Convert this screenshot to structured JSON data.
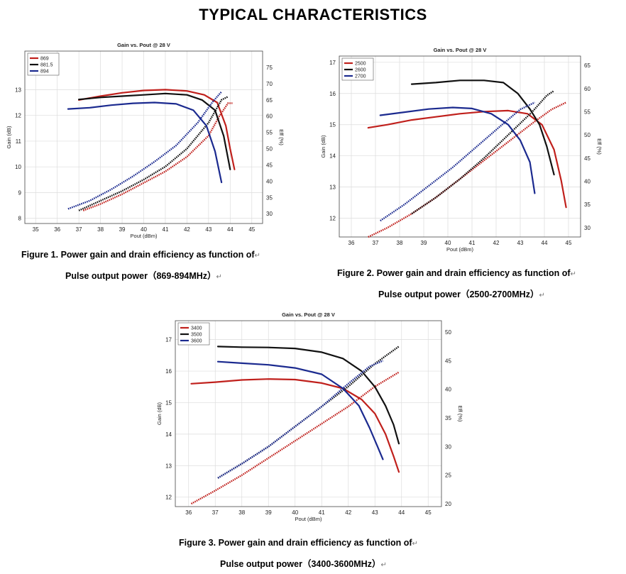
{
  "heading": "TYPICAL CHARACTERISTICS",
  "captions": [
    {
      "line1": "Figure 1. Power gain and drain efficiency as function of",
      "line2": "Pulse output power（869-894MHz）"
    },
    {
      "line1": "Figure 2. Power gain and drain efficiency as function of",
      "line2": "Pulse output power（2500-2700MHz）"
    },
    {
      "line1": "Figure 3. Power gain and drain efficiency as function of",
      "line2": "Pulse output power（3400-3600MHz）"
    }
  ],
  "return_mark": "↵",
  "chart_data": [
    {
      "type": "line",
      "title": "Gain vs. Pout @ 28 V",
      "xlabel": "Pout (dBm)",
      "ylabel": "Gain (dB)",
      "y2label": "Eff (%)",
      "xlim": [
        34.5,
        45.5
      ],
      "ylim": [
        7.8,
        14.5
      ],
      "y2lim": [
        27,
        80
      ],
      "xticks": [
        35,
        36,
        37,
        38,
        39,
        40,
        41,
        42,
        43,
        44,
        45
      ],
      "yticks": [
        8,
        9,
        10,
        11,
        12,
        13
      ],
      "y2ticks": [
        30,
        35,
        40,
        45,
        50,
        55,
        60,
        65,
        70,
        75
      ],
      "grid": true,
      "legend_position": "top-left",
      "series": [
        {
          "name": "869",
          "color": "#c0201c",
          "gain": [
            [
              37,
              12.6
            ],
            [
              38,
              12.75
            ],
            [
              39,
              12.88
            ],
            [
              40,
              12.97
            ],
            [
              41,
              13.0
            ],
            [
              42,
              12.95
            ],
            [
              42.8,
              12.8
            ],
            [
              43.4,
              12.5
            ],
            [
              43.8,
              11.6
            ],
            [
              44,
              10.7
            ],
            [
              44.2,
              9.9
            ]
          ],
          "eff": [
            [
              37.2,
              31
            ],
            [
              38,
              33
            ],
            [
              39,
              36
            ],
            [
              40,
              39.5
            ],
            [
              41,
              43
            ],
            [
              42,
              47.5
            ],
            [
              43,
              54
            ],
            [
              43.5,
              60
            ],
            [
              43.9,
              64
            ],
            [
              44.1,
              64
            ]
          ]
        },
        {
          "name": "881.5",
          "color": "#111111",
          "gain": [
            [
              37,
              12.62
            ],
            [
              38,
              12.7
            ],
            [
              39,
              12.75
            ],
            [
              40,
              12.8
            ],
            [
              41,
              12.85
            ],
            [
              42,
              12.8
            ],
            [
              42.7,
              12.6
            ],
            [
              43.3,
              12.2
            ],
            [
              43.7,
              11.2
            ],
            [
              44,
              9.9
            ]
          ],
          "eff": [
            [
              37,
              31
            ],
            [
              38,
              34
            ],
            [
              39,
              37
            ],
            [
              40,
              40.5
            ],
            [
              41,
              44.5
            ],
            [
              42,
              50
            ],
            [
              43,
              58
            ],
            [
              43.6,
              65
            ],
            [
              43.9,
              66
            ]
          ]
        },
        {
          "name": "894",
          "color": "#1b2a8f",
          "gain": [
            [
              36.5,
              12.25
            ],
            [
              37.5,
              12.3
            ],
            [
              38.5,
              12.4
            ],
            [
              39.5,
              12.47
            ],
            [
              40.5,
              12.5
            ],
            [
              41.5,
              12.45
            ],
            [
              42.3,
              12.2
            ],
            [
              42.9,
              11.6
            ],
            [
              43.3,
              10.6
            ],
            [
              43.6,
              9.4
            ]
          ],
          "eff": [
            [
              36.5,
              31.5
            ],
            [
              37.5,
              34
            ],
            [
              38.5,
              37.5
            ],
            [
              39.5,
              41.5
            ],
            [
              40.5,
              46
            ],
            [
              41.5,
              51
            ],
            [
              42.5,
              58
            ],
            [
              43.2,
              64.5
            ],
            [
              43.6,
              67.5
            ]
          ]
        }
      ]
    },
    {
      "type": "line",
      "title": "Gain vs. Pout @ 28 V",
      "xlabel": "Pout (dBm)",
      "ylabel": "Gain (dB)",
      "y2label": "Eff (%)",
      "xlim": [
        35.5,
        45.5
      ],
      "ylim": [
        11.4,
        17.2
      ],
      "y2lim": [
        28,
        67
      ],
      "xticks": [
        36,
        37,
        38,
        39,
        40,
        41,
        42,
        43,
        44,
        45
      ],
      "yticks": [
        12,
        13,
        14,
        15,
        16,
        17
      ],
      "y2ticks": [
        30,
        35,
        40,
        45,
        50,
        55,
        60,
        65
      ],
      "grid": true,
      "legend_position": "top-left",
      "series": [
        {
          "name": "2500",
          "color": "#c0201c",
          "gain": [
            [
              36.7,
              14.9
            ],
            [
              37.5,
              15.0
            ],
            [
              38.5,
              15.15
            ],
            [
              39.5,
              15.25
            ],
            [
              40.5,
              15.35
            ],
            [
              41.5,
              15.42
            ],
            [
              42.5,
              15.45
            ],
            [
              43.3,
              15.35
            ],
            [
              43.9,
              15.0
            ],
            [
              44.4,
              14.2
            ],
            [
              44.7,
              13.2
            ],
            [
              44.9,
              12.35
            ]
          ],
          "eff": [
            [
              36.7,
              28
            ],
            [
              37.5,
              30
            ],
            [
              38.5,
              33
            ],
            [
              39.5,
              36.5
            ],
            [
              40.5,
              40.5
            ],
            [
              41.5,
              44.5
            ],
            [
              42.5,
              48.5
            ],
            [
              43.5,
              52.5
            ],
            [
              44.3,
              55.5
            ],
            [
              44.9,
              57
            ]
          ]
        },
        {
          "name": "2600",
          "color": "#111111",
          "gain": [
            [
              38.5,
              16.3
            ],
            [
              39.5,
              16.35
            ],
            [
              40.5,
              16.42
            ],
            [
              41.5,
              16.42
            ],
            [
              42.3,
              16.35
            ],
            [
              42.9,
              16.0
            ],
            [
              43.4,
              15.5
            ],
            [
              43.8,
              15.0
            ],
            [
              44.1,
              14.3
            ],
            [
              44.4,
              13.4
            ]
          ],
          "eff": [
            [
              38.5,
              33
            ],
            [
              39.5,
              36.5
            ],
            [
              40.5,
              40.5
            ],
            [
              41.5,
              45
            ],
            [
              42.5,
              50
            ],
            [
              43.5,
              55
            ],
            [
              44.1,
              58.5
            ],
            [
              44.4,
              59.5
            ]
          ]
        },
        {
          "name": "2700",
          "color": "#1b2a8f",
          "gain": [
            [
              37.2,
              15.3
            ],
            [
              38.2,
              15.4
            ],
            [
              39.2,
              15.5
            ],
            [
              40.2,
              15.55
            ],
            [
              41,
              15.52
            ],
            [
              41.8,
              15.35
            ],
            [
              42.5,
              15.0
            ],
            [
              43,
              14.5
            ],
            [
              43.4,
              13.8
            ],
            [
              43.6,
              12.8
            ]
          ],
          "eff": [
            [
              37.2,
              31.5
            ],
            [
              38.2,
              35
            ],
            [
              39.2,
              39
            ],
            [
              40.2,
              43
            ],
            [
              41.2,
              47.5
            ],
            [
              42.2,
              52
            ],
            [
              43,
              55.5
            ],
            [
              43.6,
              57
            ]
          ]
        }
      ]
    },
    {
      "type": "line",
      "title": "Gain vs. Pout @ 28 V",
      "xlabel": "Pout (dBm)",
      "ylabel": "Gain (dB)",
      "y2label": "Eff (%)",
      "xlim": [
        35.5,
        45.5
      ],
      "ylim": [
        11.7,
        17.6
      ],
      "y2lim": [
        19.5,
        52
      ],
      "xticks": [
        36,
        37,
        38,
        39,
        40,
        41,
        42,
        43,
        44,
        45
      ],
      "yticks": [
        12,
        13,
        14,
        15,
        16,
        17
      ],
      "y2ticks": [
        20,
        25,
        30,
        35,
        40,
        45,
        50
      ],
      "grid": true,
      "legend_position": "top-left",
      "series": [
        {
          "name": "3400",
          "color": "#c0201c",
          "gain": [
            [
              36.1,
              15.6
            ],
            [
              37,
              15.65
            ],
            [
              38,
              15.72
            ],
            [
              39,
              15.75
            ],
            [
              40,
              15.73
            ],
            [
              41,
              15.62
            ],
            [
              41.8,
              15.45
            ],
            [
              42.5,
              15.1
            ],
            [
              43,
              14.65
            ],
            [
              43.4,
              14.0
            ],
            [
              43.7,
              13.3
            ],
            [
              43.9,
              12.8
            ]
          ],
          "eff": [
            [
              36.1,
              20
            ],
            [
              37,
              22.3
            ],
            [
              38,
              25
            ],
            [
              39,
              28
            ],
            [
              40,
              31
            ],
            [
              41,
              34
            ],
            [
              42,
              37
            ],
            [
              43,
              40.5
            ],
            [
              43.9,
              43
            ]
          ]
        },
        {
          "name": "3500",
          "color": "#111111",
          "gain": [
            [
              37.1,
              16.78
            ],
            [
              38,
              16.76
            ],
            [
              39,
              16.75
            ],
            [
              40,
              16.72
            ],
            [
              41,
              16.6
            ],
            [
              41.8,
              16.4
            ],
            [
              42.5,
              16.0
            ],
            [
              43,
              15.5
            ],
            [
              43.4,
              14.9
            ],
            [
              43.7,
              14.3
            ],
            [
              43.9,
              13.7
            ]
          ],
          "eff": [
            [
              37.1,
              24.5
            ],
            [
              38,
              27
            ],
            [
              39,
              30
            ],
            [
              40,
              33.5
            ],
            [
              41,
              37
            ],
            [
              42,
              40.5
            ],
            [
              43,
              44.5
            ],
            [
              43.9,
              47.5
            ]
          ]
        },
        {
          "name": "3600",
          "color": "#1b2a8f",
          "gain": [
            [
              37.1,
              16.3
            ],
            [
              38,
              16.25
            ],
            [
              39,
              16.2
            ],
            [
              40,
              16.1
            ],
            [
              41,
              15.9
            ],
            [
              41.8,
              15.45
            ],
            [
              42.4,
              14.9
            ],
            [
              42.8,
              14.2
            ],
            [
              43.1,
              13.6
            ],
            [
              43.3,
              13.2
            ]
          ],
          "eff": [
            [
              37.1,
              24.5
            ],
            [
              38,
              27
            ],
            [
              39,
              30
            ],
            [
              40,
              33.5
            ],
            [
              41,
              37
            ],
            [
              42,
              41
            ],
            [
              42.8,
              44
            ],
            [
              43.3,
              45
            ]
          ]
        }
      ]
    }
  ]
}
